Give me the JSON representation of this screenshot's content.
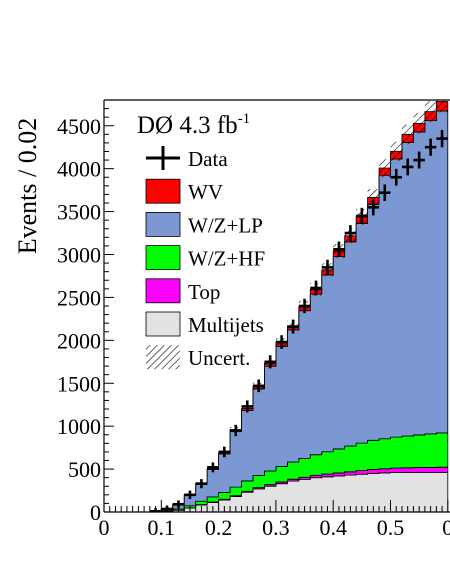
{
  "chart_data": {
    "type": "area",
    "title": "DØ 4.3 fb",
    "title_superscript": "-1",
    "xlabel": "",
    "ylabel": "Events / 0.02",
    "xlim": [
      0,
      0.6
    ],
    "ylim": [
      0,
      4800
    ],
    "x_ticks": [
      "0",
      "0.1",
      "0.2",
      "0.3",
      "0.4",
      "0.5",
      "0"
    ],
    "y_ticks": [
      "0",
      "500",
      "1000",
      "1500",
      "2000",
      "2500",
      "3000",
      "3500",
      "4000",
      "4500"
    ],
    "grid": false,
    "legend_position": "top-left",
    "bin_edges": [
      0.08,
      0.1,
      0.12,
      0.14,
      0.16,
      0.18,
      0.2,
      0.22,
      0.24,
      0.26,
      0.28,
      0.3,
      0.32,
      0.34,
      0.36,
      0.38,
      0.4,
      0.42,
      0.44,
      0.46,
      0.48,
      0.5,
      0.52,
      0.54,
      0.56,
      0.58,
      0.6
    ],
    "bin_centers": [
      0.09,
      0.11,
      0.13,
      0.15,
      0.17,
      0.19,
      0.21,
      0.23,
      0.25,
      0.27,
      0.29,
      0.31,
      0.33,
      0.35,
      0.37,
      0.39,
      0.41,
      0.43,
      0.45,
      0.47,
      0.49,
      0.51,
      0.53,
      0.55,
      0.57,
      0.59
    ],
    "series": [
      {
        "name": "Multijets",
        "color": "#e2e2e2",
        "values": [
          2,
          8,
          20,
          45,
          80,
          110,
          140,
          180,
          230,
          270,
          300,
          330,
          360,
          380,
          400,
          410,
          420,
          430,
          440,
          450,
          455,
          460,
          460,
          460,
          460,
          460
        ]
      },
      {
        "name": "Top",
        "color": "#ff00ff",
        "values": [
          0,
          1,
          2,
          3,
          5,
          6,
          8,
          10,
          12,
          15,
          18,
          20,
          22,
          25,
          28,
          32,
          35,
          38,
          42,
          45,
          48,
          52,
          55,
          58,
          60,
          62
        ]
      },
      {
        "name": "W/Z+HF",
        "color": "#00ff00",
        "values": [
          1,
          5,
          12,
          25,
          40,
          60,
          80,
          100,
          120,
          140,
          160,
          180,
          200,
          220,
          240,
          260,
          280,
          300,
          320,
          340,
          350,
          360,
          370,
          380,
          390,
          400
        ]
      },
      {
        "name": "W/Z+LP",
        "color": "#7b98d2",
        "values": [
          5,
          20,
          55,
          120,
          200,
          320,
          450,
          650,
          820,
          1010,
          1220,
          1400,
          1540,
          1720,
          1870,
          2060,
          2240,
          2380,
          2560,
          2750,
          3070,
          3240,
          3420,
          3530,
          3650,
          3750
        ]
      },
      {
        "name": "WV",
        "color": "#ff0000",
        "values": [
          0,
          1,
          3,
          5,
          8,
          12,
          16,
          20,
          25,
          30,
          35,
          40,
          45,
          50,
          55,
          60,
          65,
          70,
          75,
          80,
          85,
          90,
          95,
          100,
          105,
          110
        ]
      }
    ],
    "data": {
      "name": "Data",
      "values": [
        8,
        35,
        90,
        200,
        330,
        520,
        700,
        950,
        1230,
        1470,
        1750,
        1980,
        2160,
        2400,
        2610,
        2850,
        3060,
        3250,
        3450,
        3550,
        3720,
        3900,
        4020,
        4100,
        4250,
        4350
      ]
    },
    "legend": [
      {
        "label": "Data",
        "kind": "data"
      },
      {
        "label": "WV",
        "kind": "box",
        "color": "#ff0000"
      },
      {
        "label": "W/Z+LP",
        "kind": "box",
        "color": "#7b98d2"
      },
      {
        "label": "W/Z+HF",
        "kind": "box",
        "color": "#00ff00"
      },
      {
        "label": "Top",
        "kind": "box",
        "color": "#ff00ff"
      },
      {
        "label": "Multijets",
        "kind": "box",
        "color": "#e2e2e2"
      },
      {
        "label": "Uncert.",
        "kind": "hatch"
      }
    ]
  }
}
